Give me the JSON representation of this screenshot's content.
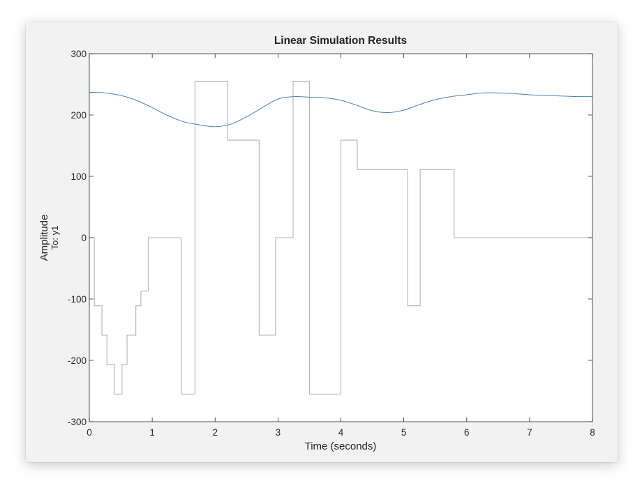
{
  "chart_data": {
    "type": "line",
    "title": "Linear Simulation Results",
    "xlabel": "Time (seconds)",
    "ylabel": "Amplitude",
    "ylabel_sub": "To: y1",
    "xlim": [
      0,
      8
    ],
    "ylim": [
      -300,
      300
    ],
    "xticks": [
      0,
      1,
      2,
      3,
      4,
      5,
      6,
      7,
      8
    ],
    "yticks": [
      -300,
      -200,
      -100,
      0,
      100,
      200,
      300
    ],
    "grid": false,
    "series": [
      {
        "role": "input",
        "color": "#b3b3b3",
        "step": true,
        "x": [
          0,
          0.08,
          0.2,
          0.28,
          0.4,
          0.52,
          0.6,
          0.74,
          0.82,
          0.94,
          1.46,
          1.68,
          2.2,
          2.7,
          2.96,
          3.24,
          3.5,
          4.0,
          4.26,
          5.06,
          5.26,
          5.8,
          8.0
        ],
        "y": [
          0,
          -111,
          -159,
          -207,
          -255,
          -207,
          -159,
          -111,
          -87,
          0,
          -255,
          255,
          159,
          -159,
          0,
          255,
          -255,
          159,
          111,
          -111,
          111,
          0,
          0
        ]
      },
      {
        "role": "response",
        "color": "#4a7fb5",
        "step": false,
        "x": [
          0,
          0.25,
          0.5,
          0.75,
          1.0,
          1.25,
          1.5,
          1.75,
          2.0,
          2.25,
          2.5,
          2.75,
          3.0,
          3.25,
          3.5,
          3.75,
          4.0,
          4.25,
          4.5,
          4.75,
          5.0,
          5.25,
          5.5,
          5.75,
          6.0,
          6.25,
          6.5,
          6.75,
          7.0,
          7.25,
          7.5,
          7.75,
          8.0
        ],
        "y": [
          237,
          236,
          232,
          224,
          212,
          199,
          189,
          184,
          181,
          185,
          197,
          212,
          226,
          230,
          229,
          228,
          224,
          216,
          207,
          204,
          208,
          217,
          225,
          230,
          233,
          236,
          236,
          235,
          233,
          232,
          231,
          230,
          230
        ]
      }
    ]
  }
}
